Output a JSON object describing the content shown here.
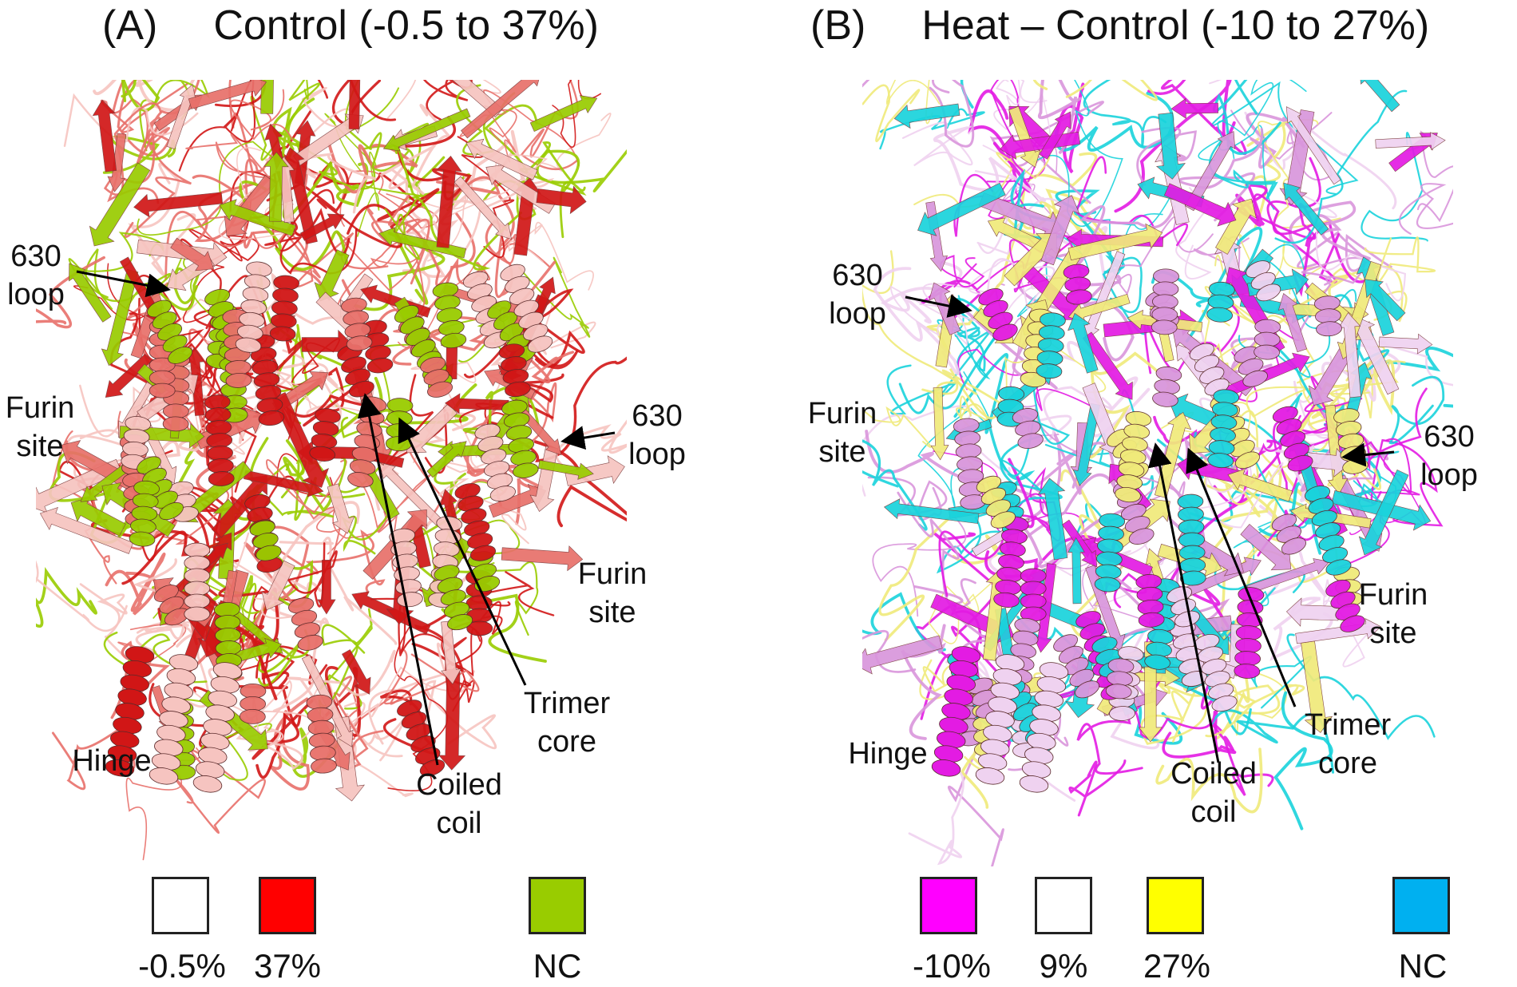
{
  "panelA": {
    "letter": "(A)",
    "title": "Control (-0.5 to 37%)",
    "colors": {
      "base": "#e8706a",
      "light": "#f6c4c0",
      "dark": "#d11616",
      "accent": "#99cc00",
      "white": "#ffffff"
    },
    "labels": {
      "loop630_left": "630\nloop",
      "furin_left": "Furin\nsite",
      "loop630_right": "630\nloop",
      "furin_right": "Furin\nsite",
      "trimer_core": "Trimer\ncore",
      "coiled_coil": "Coiled\ncoil",
      "hinge": "Hinge"
    },
    "legend": [
      {
        "color": "#ffffff",
        "value": "-0.5%"
      },
      {
        "color": "#ff0000",
        "value": "37%"
      },
      {
        "color": "#99cc00",
        "value": "NC"
      }
    ]
  },
  "panelB": {
    "letter": "(B)",
    "title": "Heat – Control (-10 to 27%)",
    "colors": {
      "base": "#d996dc",
      "light": "#efd2f0",
      "dark": "#e31be3",
      "accent": "#f0ea7a",
      "cyan": "#1ad3dc",
      "white": "#ffffff"
    },
    "labels": {
      "loop630_left": "630\nloop",
      "furin_left": "Furin\nsite",
      "loop630_right": "630\nloop",
      "furin_right": "Furin\nsite",
      "trimer_core": "Trimer\ncore",
      "coiled_coil": "Coiled\ncoil",
      "hinge": "Hinge"
    },
    "legend": [
      {
        "color": "#ff00ff",
        "value": "-10%"
      },
      {
        "color": "#ffffff",
        "value": "9%"
      },
      {
        "color": "#ffff00",
        "value": "27%"
      },
      {
        "color": "#00b0f0",
        "value": "NC"
      }
    ]
  }
}
